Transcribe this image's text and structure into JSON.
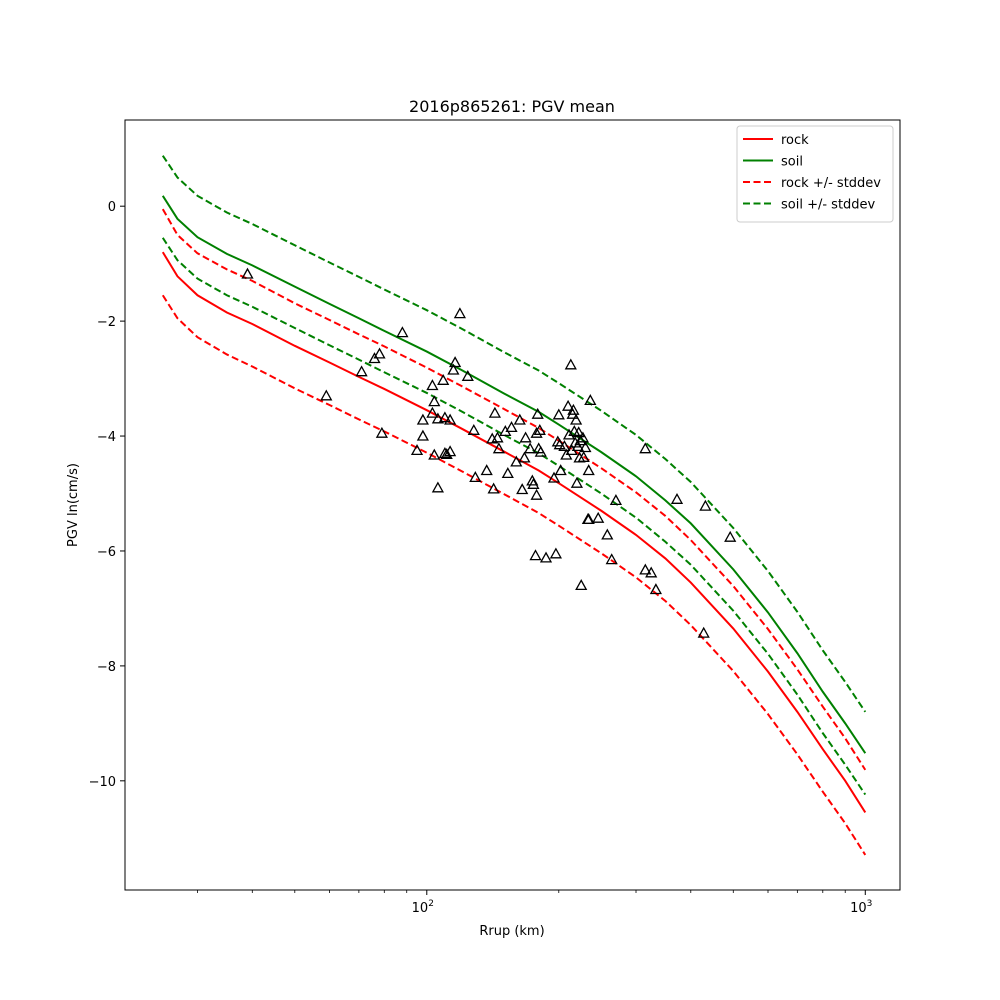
{
  "chart_data": {
    "type": "line",
    "title": "2016p865261: PGV mean",
    "xlabel": "Rrup (km)",
    "ylabel": "PGV ln(cm/s)",
    "xscale": "log",
    "xlim": [
      20.5,
      1200
    ],
    "ylim": [
      -11.9,
      1.5
    ],
    "xticks": [
      {
        "value": 100,
        "base": "10",
        "exp": "2"
      },
      {
        "value": 1000,
        "base": "10",
        "exp": "3"
      }
    ],
    "yticks": [
      {
        "value": 0,
        "label": "0"
      },
      {
        "value": -2,
        "label": "−2"
      },
      {
        "value": -4,
        "label": "−4"
      },
      {
        "value": -6,
        "label": "−6"
      },
      {
        "value": -8,
        "label": "−8"
      },
      {
        "value": -10,
        "label": "−10"
      }
    ],
    "grid": false,
    "legend_position": "top-right",
    "series": [
      {
        "name": "rock",
        "color": "#ff0000",
        "style": "solid",
        "x": [
          25,
          27,
          30,
          35,
          40,
          50,
          60,
          70,
          80,
          100,
          120,
          150,
          180,
          200,
          250,
          300,
          350,
          400,
          500,
          600,
          700,
          800,
          900,
          1000
        ],
        "y": [
          -0.8,
          -1.22,
          -1.55,
          -1.85,
          -2.05,
          -2.43,
          -2.72,
          -2.97,
          -3.18,
          -3.55,
          -3.87,
          -4.27,
          -4.6,
          -4.82,
          -5.3,
          -5.72,
          -6.13,
          -6.55,
          -7.35,
          -8.1,
          -8.8,
          -9.45,
          -10.0,
          -10.55
        ]
      },
      {
        "name": "soil",
        "color": "#008000",
        "style": "solid",
        "x": [
          25,
          27,
          30,
          35,
          40,
          50,
          60,
          70,
          80,
          100,
          120,
          150,
          180,
          200,
          250,
          300,
          350,
          400,
          500,
          600,
          700,
          800,
          900,
          1000
        ],
        "y": [
          0.18,
          -0.22,
          -0.54,
          -0.83,
          -1.03,
          -1.4,
          -1.7,
          -1.95,
          -2.17,
          -2.53,
          -2.85,
          -3.26,
          -3.58,
          -3.8,
          -4.28,
          -4.7,
          -5.12,
          -5.52,
          -6.32,
          -7.07,
          -7.78,
          -8.45,
          -9.0,
          -9.52
        ]
      },
      {
        "name": "rock +/- stddev",
        "color": "#ff0000",
        "style": "dashed",
        "x": [
          25,
          27,
          30,
          35,
          40,
          50,
          60,
          70,
          80,
          100,
          120,
          150,
          180,
          200,
          250,
          300,
          350,
          400,
          500,
          600,
          700,
          800,
          900,
          1000
        ],
        "y": [
          -0.05,
          -0.5,
          -0.82,
          -1.1,
          -1.3,
          -1.69,
          -1.98,
          -2.23,
          -2.44,
          -2.81,
          -3.13,
          -3.53,
          -3.86,
          -4.08,
          -4.56,
          -4.98,
          -5.39,
          -5.81,
          -6.61,
          -7.36,
          -8.06,
          -8.71,
          -9.26,
          -9.81
        ]
      },
      {
        "name": "",
        "color": "#ff0000",
        "style": "dashed",
        "x": [
          25,
          27,
          30,
          35,
          40,
          50,
          60,
          70,
          80,
          100,
          120,
          150,
          180,
          200,
          250,
          300,
          350,
          400,
          500,
          600,
          700,
          800,
          900,
          1000
        ],
        "y": [
          -1.55,
          -1.95,
          -2.28,
          -2.58,
          -2.79,
          -3.17,
          -3.46,
          -3.71,
          -3.92,
          -4.29,
          -4.61,
          -5.01,
          -5.34,
          -5.56,
          -6.04,
          -6.46,
          -6.87,
          -7.29,
          -8.09,
          -8.84,
          -9.54,
          -10.19,
          -10.74,
          -11.29
        ]
      },
      {
        "name": "soil +/- stddev",
        "color": "#008000",
        "style": "dashed",
        "x": [
          25,
          27,
          30,
          35,
          40,
          50,
          60,
          70,
          80,
          100,
          120,
          150,
          180,
          200,
          250,
          300,
          350,
          400,
          500,
          600,
          700,
          800,
          900,
          1000
        ],
        "y": [
          0.88,
          0.5,
          0.18,
          -0.11,
          -0.31,
          -0.68,
          -0.98,
          -1.23,
          -1.45,
          -1.81,
          -2.13,
          -2.54,
          -2.86,
          -3.08,
          -3.56,
          -3.98,
          -4.4,
          -4.8,
          -5.6,
          -6.35,
          -7.06,
          -7.73,
          -8.28,
          -8.8
        ]
      },
      {
        "name": "",
        "color": "#008000",
        "style": "dashed",
        "x": [
          25,
          27,
          30,
          35,
          40,
          50,
          60,
          70,
          80,
          100,
          120,
          150,
          180,
          200,
          250,
          300,
          350,
          400,
          500,
          600,
          700,
          800,
          900,
          1000
        ],
        "y": [
          -0.55,
          -0.94,
          -1.26,
          -1.55,
          -1.75,
          -2.12,
          -2.42,
          -2.67,
          -2.89,
          -3.25,
          -3.57,
          -3.98,
          -4.3,
          -4.52,
          -5.0,
          -5.42,
          -5.84,
          -6.24,
          -7.04,
          -7.79,
          -8.5,
          -9.17,
          -9.72,
          -10.24
        ]
      }
    ],
    "observations": {
      "marker": "triangle",
      "color": "#000000",
      "points": [
        [
          39,
          -1.18
        ],
        [
          59,
          -3.3
        ],
        [
          71,
          -2.88
        ],
        [
          76,
          -2.65
        ],
        [
          78,
          -2.57
        ],
        [
          79,
          -3.95
        ],
        [
          88,
          -2.2
        ],
        [
          95,
          -4.25
        ],
        [
          98,
          -4.0
        ],
        [
          98,
          -3.72
        ],
        [
          103,
          -3.6
        ],
        [
          103,
          -3.12
        ],
        [
          104,
          -4.33
        ],
        [
          104,
          -3.4
        ],
        [
          106,
          -3.7
        ],
        [
          106,
          -4.9
        ],
        [
          109,
          -3.03
        ],
        [
          110,
          -4.3
        ],
        [
          110,
          -3.68
        ],
        [
          111,
          -4.32
        ],
        [
          113,
          -4.27
        ],
        [
          113,
          -3.72
        ],
        [
          115,
          -2.85
        ],
        [
          116,
          -2.72
        ],
        [
          119,
          -1.87
        ],
        [
          124,
          -2.96
        ],
        [
          128,
          -3.9
        ],
        [
          129,
          -4.72
        ],
        [
          137,
          -4.6
        ],
        [
          141,
          -4.05
        ],
        [
          142,
          -4.92
        ],
        [
          143,
          -3.6
        ],
        [
          145,
          -4.03
        ],
        [
          146,
          -4.22
        ],
        [
          151,
          -3.92
        ],
        [
          153,
          -4.65
        ],
        [
          156,
          -3.85
        ],
        [
          160,
          -4.45
        ],
        [
          163,
          -3.72
        ],
        [
          165,
          -4.93
        ],
        [
          167,
          -4.38
        ],
        [
          168,
          -4.03
        ],
        [
          172,
          -4.22
        ],
        [
          174,
          -4.78
        ],
        [
          175,
          -4.84
        ],
        [
          177,
          -6.08
        ],
        [
          178,
          -5.03
        ],
        [
          178,
          -3.95
        ],
        [
          179,
          -3.62
        ],
        [
          180,
          -4.22
        ],
        [
          181,
          -3.9
        ],
        [
          182,
          -4.28
        ],
        [
          187,
          -6.12
        ],
        [
          195,
          -4.73
        ],
        [
          197,
          -6.05
        ],
        [
          199,
          -4.1
        ],
        [
          200,
          -3.63
        ],
        [
          201,
          -4.15
        ],
        [
          202,
          -4.6
        ],
        [
          206,
          -4.18
        ],
        [
          208,
          -4.33
        ],
        [
          210,
          -3.48
        ],
        [
          211,
          -3.98
        ],
        [
          213,
          -2.76
        ],
        [
          214,
          -4.25
        ],
        [
          215,
          -3.62
        ],
        [
          216,
          -3.55
        ],
        [
          217,
          -3.92
        ],
        [
          218,
          -4.12
        ],
        [
          219,
          -3.72
        ],
        [
          220,
          -4.82
        ],
        [
          221,
          -4.18
        ],
        [
          222,
          -3.94
        ],
        [
          223,
          -4.38
        ],
        [
          224,
          -4.08
        ],
        [
          225,
          -6.6
        ],
        [
          227,
          -4.03
        ],
        [
          228,
          -4.37
        ],
        [
          230,
          -4.2
        ],
        [
          233,
          -5.45
        ],
        [
          234,
          -5.45
        ],
        [
          234,
          -4.6
        ],
        [
          236,
          -3.38
        ],
        [
          246,
          -5.43
        ],
        [
          258,
          -5.72
        ],
        [
          264,
          -6.15
        ],
        [
          270,
          -5.12
        ],
        [
          315,
          -4.22
        ],
        [
          315,
          -6.33
        ],
        [
          325,
          -6.38
        ],
        [
          333,
          -6.67
        ],
        [
          372,
          -5.1
        ],
        [
          428,
          -7.43
        ],
        [
          432,
          -5.22
        ],
        [
          492,
          -5.76
        ]
      ]
    }
  }
}
